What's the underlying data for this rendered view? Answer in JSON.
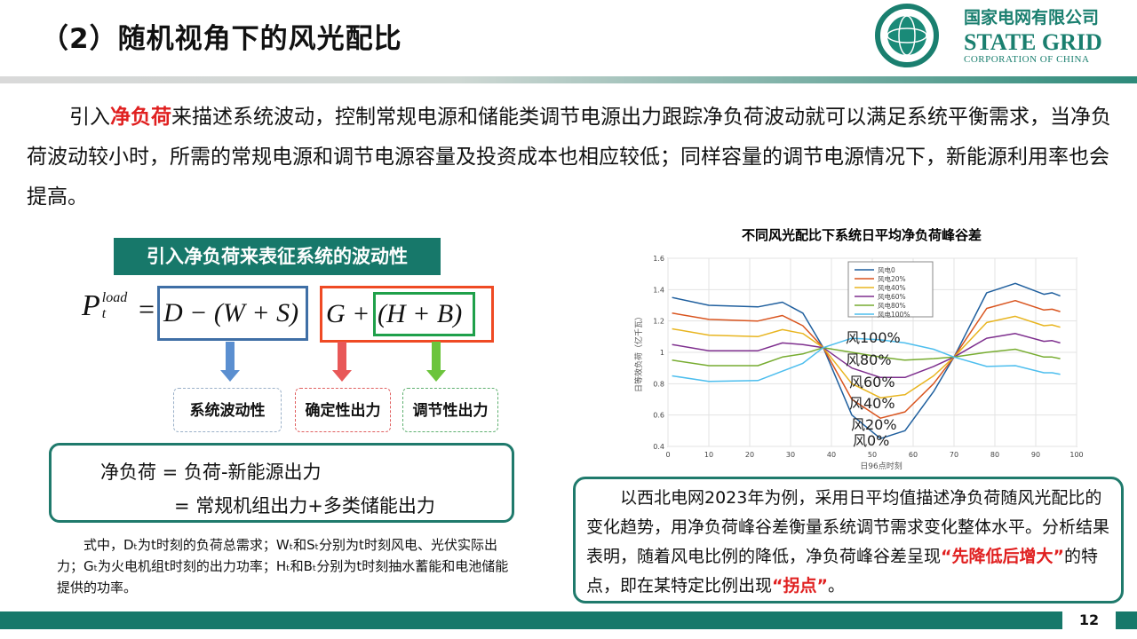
{
  "header": {
    "title": "（2）随机视角下的风光配比",
    "logo_cn": "国家电网有限公司",
    "logo_en": "STATE GRID",
    "logo_sub": "CORPORATION OF CHINA",
    "logo_ring": "国家电网公司 STATE GRID CORPORATION OF CHINA"
  },
  "intro": {
    "p1": "引入",
    "p1_red": "净负荷",
    "p1_rest": "来描述系统波动，控制常规电源和储能类调节电源出力跟踪净负荷波动就可以满足系统平衡需求，当净负荷波动较小时，所需的常规电源和调节电源容量及投资成本也相应较低；同样容量的调节电源情况下，新能源利用率也会提高。"
  },
  "left": {
    "banner": "引入净负荷来表征系统的波动性",
    "formula": {
      "lhs": "P",
      "sup": "load",
      "sub": "t",
      "eq": "=",
      "blue": "D − (W + S)",
      "red_g": "G",
      "plus": "+",
      "green": "(H + B)"
    },
    "tags": [
      "系统波动性",
      "确定性出力",
      "调节性出力"
    ],
    "net_line1": "净负荷 = 负荷-新能源出力",
    "net_line2": "= 常规机组出力+多类储能出力",
    "note": "式中，Dₜ为t时刻的负荷总需求；Wₜ和Sₜ分别为t时刻风电、光伏实际出力；Gₜ为火电机组t时刻的出力功率；Hₜ和Bₜ分别为t时刻抽水蓄能和电池储能提供的功率。"
  },
  "right": {
    "text1": "以西北电网2023年为例，采用日平均值描述净负荷随风光配比的变化趋势，用净负荷峰谷差衡量系统调节需求变化整体水平。分析结果表明，随着风电比例的降低，净负荷峰谷差呈现",
    "red1": "“先降低后增大”",
    "text2": "的特点，即在某特定比例出现",
    "red2": "“拐点”",
    "text3": "。"
  },
  "page": "12",
  "chart_data": {
    "type": "line",
    "title": "不同风光配比下系统日平均净负荷峰谷差",
    "xlabel": "日96点时刻",
    "ylabel": "日等效负荷（亿千瓦）",
    "xlim": [
      0,
      100
    ],
    "ylim": [
      0.4,
      1.6
    ],
    "grid": true,
    "legend": "top-center",
    "xticks": [
      0,
      10,
      20,
      30,
      40,
      50,
      60,
      70,
      80,
      90,
      100
    ],
    "yticks": [
      0.4,
      0.6,
      0.8,
      1,
      1.2,
      1.4,
      1.6
    ],
    "x": [
      1,
      10,
      22,
      28,
      33,
      38,
      45,
      52,
      58,
      65,
      70,
      78,
      85,
      92,
      94,
      96
    ],
    "series": [
      {
        "name": "风电0",
        "color": "#1f5f9e",
        "values": [
          1.35,
          1.3,
          1.29,
          1.32,
          1.25,
          1.03,
          0.6,
          0.45,
          0.5,
          0.75,
          0.97,
          1.38,
          1.44,
          1.37,
          1.38,
          1.36
        ]
      },
      {
        "name": "风电20%",
        "color": "#d9541e",
        "values": [
          1.25,
          1.21,
          1.2,
          1.235,
          1.17,
          1.03,
          0.7,
          0.58,
          0.62,
          0.8,
          0.97,
          1.28,
          1.33,
          1.27,
          1.275,
          1.26
        ]
      },
      {
        "name": "风电40%",
        "color": "#e8b520",
        "values": [
          1.15,
          1.11,
          1.1,
          1.145,
          1.12,
          1.03,
          0.8,
          0.71,
          0.73,
          0.85,
          0.97,
          1.19,
          1.23,
          1.17,
          1.175,
          1.16
        ]
      },
      {
        "name": "风电60%",
        "color": "#7e2f8e",
        "values": [
          1.05,
          1.01,
          1.01,
          1.06,
          1.05,
          1.03,
          0.9,
          0.84,
          0.84,
          0.91,
          0.97,
          1.09,
          1.12,
          1.07,
          1.075,
          1.06
        ]
      },
      {
        "name": "风电80%",
        "color": "#77ac30",
        "values": [
          0.95,
          0.915,
          0.915,
          0.97,
          0.99,
          1.03,
          1.0,
          0.97,
          0.95,
          0.96,
          0.97,
          1.0,
          1.02,
          0.97,
          0.97,
          0.96
        ]
      },
      {
        "name": "风电100%",
        "color": "#4dbeee",
        "values": [
          0.85,
          0.815,
          0.82,
          0.88,
          0.93,
          1.03,
          1.09,
          1.08,
          1.06,
          1.02,
          0.97,
          0.91,
          0.915,
          0.87,
          0.87,
          0.86
        ]
      }
    ],
    "annotations": [
      "风100%",
      "风80%",
      "风60%",
      "风40%",
      "风20%",
      "风0%"
    ]
  }
}
